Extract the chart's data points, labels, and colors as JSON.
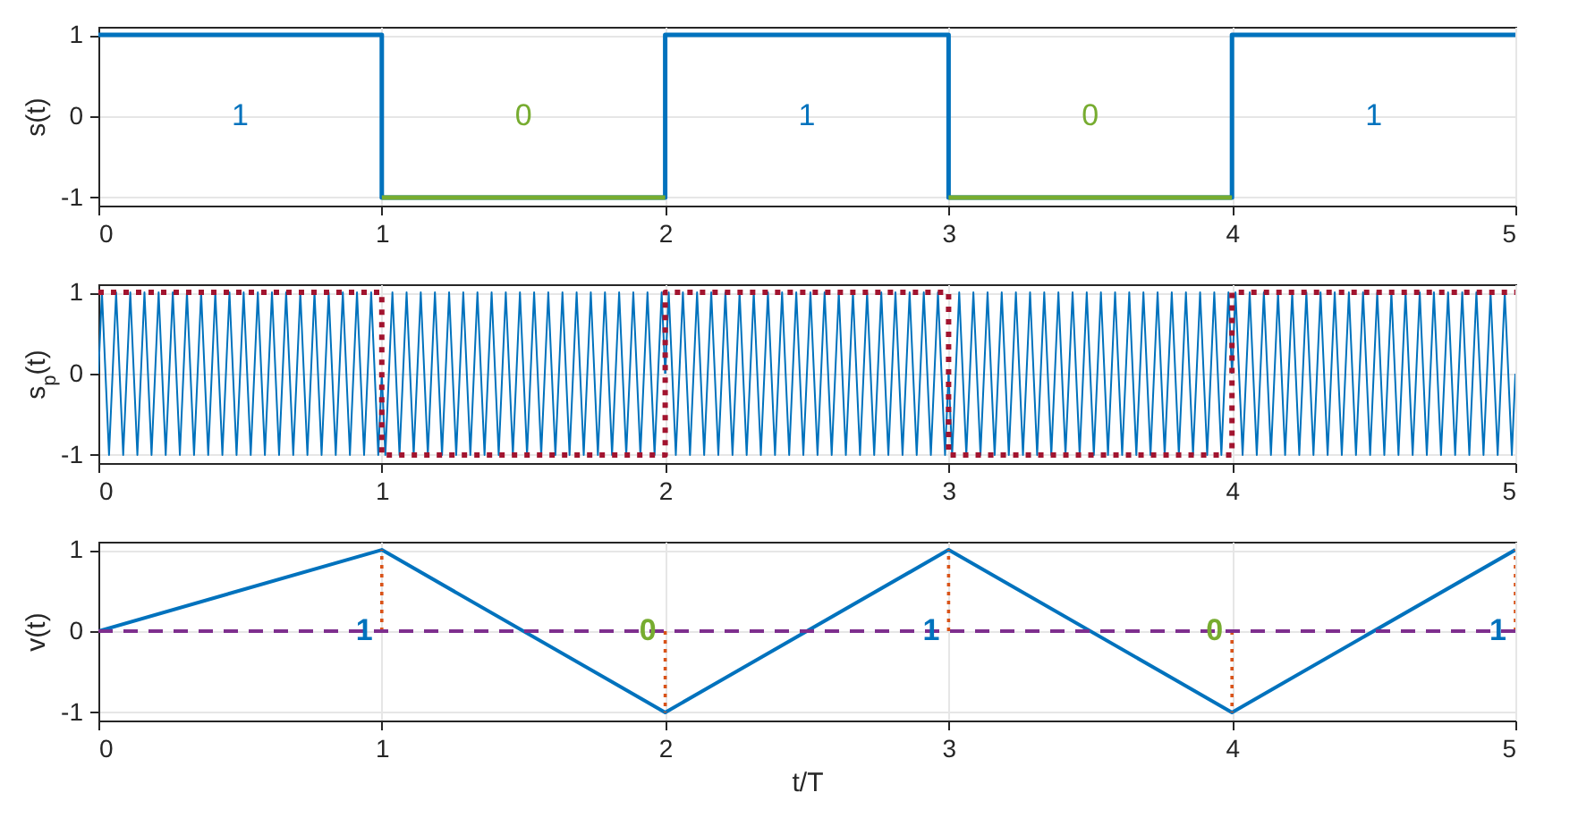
{
  "chart_data": [
    {
      "type": "line",
      "ylabel": "s(t)",
      "xlim": [
        0,
        5
      ],
      "xticks": [
        0,
        1,
        2,
        3,
        4,
        5
      ],
      "ylim": [
        -1.1,
        1.1
      ],
      "yticks": [
        -1,
        0,
        1
      ],
      "grid": true,
      "series": [
        {
          "color": "#0072bd",
          "x": [
            0,
            1,
            1,
            2,
            2,
            3,
            3,
            4,
            4,
            5
          ],
          "values": [
            1,
            1,
            -1,
            -1,
            1,
            1,
            -1,
            -1,
            1,
            1
          ]
        },
        {
          "color": "#77ac30",
          "x": [
            1,
            2
          ],
          "values": [
            -1,
            -1
          ]
        },
        {
          "color": "#77ac30",
          "x": [
            3,
            4
          ],
          "values": [
            -1,
            -1
          ]
        }
      ],
      "annotations": [
        "1",
        "0",
        "1",
        "0",
        "1"
      ]
    },
    {
      "type": "line",
      "ylabel": "s$_{p}$(t)",
      "xlim": [
        0,
        5
      ],
      "xticks": [
        0,
        1,
        2,
        3,
        4,
        5
      ],
      "ylim": [
        -1.1,
        1.1
      ],
      "yticks": [
        -1,
        0,
        1
      ],
      "grid": true,
      "series": [
        {
          "color": "#0072bd",
          "x": [
            0,
            0.0125,
            0.0375,
            0.0625,
            0.0875,
            0.1125,
            0.1375,
            0.1625,
            0.1875,
            0.2125,
            0.2375,
            0.2625,
            0.2875,
            0.3125,
            0.3375,
            0.3625,
            0.3875,
            0.4125,
            0.4375,
            0.4625,
            0.4875,
            0.5125,
            0.5375,
            0.5625,
            0.5875,
            0.6125,
            0.6375,
            0.6625,
            0.6875,
            0.7125,
            0.7375,
            0.7625,
            0.7875,
            0.8125,
            0.8375,
            0.8625,
            0.8875,
            0.9125,
            0.9375,
            0.9625,
            0.9875,
            1
          ],
          "values": [
            0,
            1,
            -1,
            1,
            -1,
            1,
            -1,
            1,
            -1,
            1,
            -1,
            1,
            -1,
            1,
            -1,
            1,
            -1,
            1,
            -1,
            1,
            -1,
            1,
            -1,
            1,
            -1,
            1,
            -1,
            1,
            -1,
            1,
            -1,
            1,
            -1,
            1,
            -1,
            1,
            -1,
            1,
            -1,
            1,
            -1,
            0
          ]
        },
        {
          "color": "#0072bd",
          "x": [
            1,
            1.0125,
            1.0375,
            1.0625,
            1.0875,
            1.1125,
            1.1375,
            1.1625,
            1.1875,
            1.2125,
            1.2375,
            1.2625,
            1.2875,
            1.3125,
            1.3375,
            1.3625,
            1.3875,
            1.4125,
            1.4375,
            1.4625,
            1.4875,
            1.5125,
            1.5375,
            1.5625,
            1.5875,
            1.6125,
            1.6375,
            1.6625,
            1.6875,
            1.7125,
            1.7375,
            1.7625,
            1.7875,
            1.8125,
            1.8375,
            1.8625,
            1.8875,
            1.9125,
            1.9375,
            1.9625,
            1.9875,
            2
          ],
          "values": [
            0,
            -1,
            1,
            -1,
            1,
            -1,
            1,
            -1,
            1,
            -1,
            1,
            -1,
            1,
            -1,
            1,
            -1,
            1,
            -1,
            1,
            -1,
            1,
            -1,
            1,
            -1,
            1,
            -1,
            1,
            -1,
            1,
            -1,
            1,
            -1,
            1,
            -1,
            1,
            -1,
            1,
            -1,
            1,
            -1,
            1,
            0
          ]
        },
        {
          "color": "#0072bd",
          "x": [
            2,
            2.0125,
            2.0375,
            2.0625,
            2.0875,
            2.1125,
            2.1375,
            2.1625,
            2.1875,
            2.2125,
            2.2375,
            2.2625,
            2.2875,
            2.3125,
            2.3375,
            2.3625,
            2.3875,
            2.4125,
            2.4375,
            2.4625,
            2.4875,
            2.5125,
            2.5375,
            2.5625,
            2.5875,
            2.6125,
            2.6375,
            2.6625,
            2.6875,
            2.7125,
            2.7375,
            2.7625,
            2.7875,
            2.8125,
            2.8375,
            2.8625,
            2.8875,
            2.9125,
            2.9375,
            2.9625,
            2.9875,
            3
          ],
          "values": [
            0,
            1,
            -1,
            1,
            -1,
            1,
            -1,
            1,
            -1,
            1,
            -1,
            1,
            -1,
            1,
            -1,
            1,
            -1,
            1,
            -1,
            1,
            -1,
            1,
            -1,
            1,
            -1,
            1,
            -1,
            1,
            -1,
            1,
            -1,
            1,
            -1,
            1,
            -1,
            1,
            -1,
            1,
            -1,
            1,
            -1,
            0
          ]
        },
        {
          "color": "#0072bd",
          "x": [
            3,
            3.0125,
            3.0375,
            3.0625,
            3.0875,
            3.1125,
            3.1375,
            3.1625,
            3.1875,
            3.2125,
            3.2375,
            3.2625,
            3.2875,
            3.3125,
            3.3375,
            3.3625,
            3.3875,
            3.4125,
            3.4375,
            3.4625,
            3.4875,
            3.5125,
            3.5375,
            3.5625,
            3.5875,
            3.6125,
            3.6375,
            3.6625,
            3.6875,
            3.7125,
            3.7375,
            3.7625,
            3.7875,
            3.8125,
            3.8375,
            3.8625,
            3.8875,
            3.9125,
            3.9375,
            3.9625,
            3.9875,
            4
          ],
          "values": [
            0,
            -1,
            1,
            -1,
            1,
            -1,
            1,
            -1,
            1,
            -1,
            1,
            -1,
            1,
            -1,
            1,
            -1,
            1,
            -1,
            1,
            -1,
            1,
            -1,
            1,
            -1,
            1,
            -1,
            1,
            -1,
            1,
            -1,
            1,
            -1,
            1,
            -1,
            1,
            -1,
            1,
            -1,
            1,
            -1,
            1,
            0
          ]
        },
        {
          "color": "#0072bd",
          "x": [
            4,
            4.0125,
            4.0375,
            4.0625,
            4.0875,
            4.1125,
            4.1375,
            4.1625,
            4.1875,
            4.2125,
            4.2375,
            4.2625,
            4.2875,
            4.3125,
            4.3375,
            4.3625,
            4.3875,
            4.4125,
            4.4375,
            4.4625,
            4.4875,
            4.5125,
            4.5375,
            4.5625,
            4.5875,
            4.6125,
            4.6375,
            4.6625,
            4.6875,
            4.7125,
            4.7375,
            4.7625,
            4.7875,
            4.8125,
            4.8375,
            4.8625,
            4.8875,
            4.9125,
            4.9375,
            4.9625,
            4.9875,
            5
          ],
          "values": [
            0,
            1,
            -1,
            1,
            -1,
            1,
            -1,
            1,
            -1,
            1,
            -1,
            1,
            -1,
            1,
            -1,
            1,
            -1,
            1,
            -1,
            1,
            -1,
            1,
            -1,
            1,
            -1,
            1,
            -1,
            1,
            -1,
            1,
            -1,
            1,
            -1,
            1,
            -1,
            1,
            -1,
            1,
            -1,
            1,
            -1,
            0
          ]
        },
        {
          "color": "#a2142f",
          "line_style": "dotted",
          "x": [
            0,
            1,
            1,
            2,
            2,
            3,
            3,
            4,
            4,
            5
          ],
          "values": [
            1,
            1,
            -1,
            -1,
            1,
            1,
            -1,
            -1,
            1,
            1
          ]
        }
      ]
    },
    {
      "type": "line",
      "xlabel": "t/T",
      "ylabel": "v(t)",
      "xlim": [
        0,
        5
      ],
      "xticks": [
        0,
        1,
        2,
        3,
        4,
        5
      ],
      "ylim": [
        -1.1,
        1.1
      ],
      "yticks": [
        -1,
        0,
        1
      ],
      "grid": true,
      "series": [
        {
          "color": "#0072bd",
          "x": [
            0,
            1,
            2,
            3,
            4,
            5
          ],
          "values": [
            0,
            1,
            -1,
            1,
            -1,
            1
          ]
        },
        {
          "color": "#d95319",
          "line_style": "dotted",
          "x": [
            1,
            1
          ],
          "values": [
            0,
            1
          ]
        },
        {
          "color": "#d95319",
          "line_style": "dotted",
          "x": [
            2,
            2
          ],
          "values": [
            0,
            -1
          ]
        },
        {
          "color": "#d95319",
          "line_style": "dotted",
          "x": [
            3,
            3
          ],
          "values": [
            0,
            1
          ]
        },
        {
          "color": "#d95319",
          "line_style": "dotted",
          "x": [
            4,
            4
          ],
          "values": [
            0,
            -1
          ]
        },
        {
          "color": "#d95319",
          "line_style": "dotted",
          "x": [
            5,
            5
          ],
          "values": [
            0,
            1
          ]
        }
      ],
      "ref_lines": [
        {
          "axis": "y",
          "value": 0,
          "color": "#7e2f8e",
          "line_style": "dashed"
        }
      ],
      "annotations": [
        {
          "text": "1",
          "x": 1,
          "y": 0
        },
        {
          "text": "0",
          "x": 2,
          "y": 0
        },
        {
          "text": "1",
          "x": 3,
          "y": 0
        },
        {
          "text": "0",
          "x": 4,
          "y": 0
        },
        {
          "text": "1",
          "x": 5,
          "y": 0
        }
      ]
    }
  ]
}
